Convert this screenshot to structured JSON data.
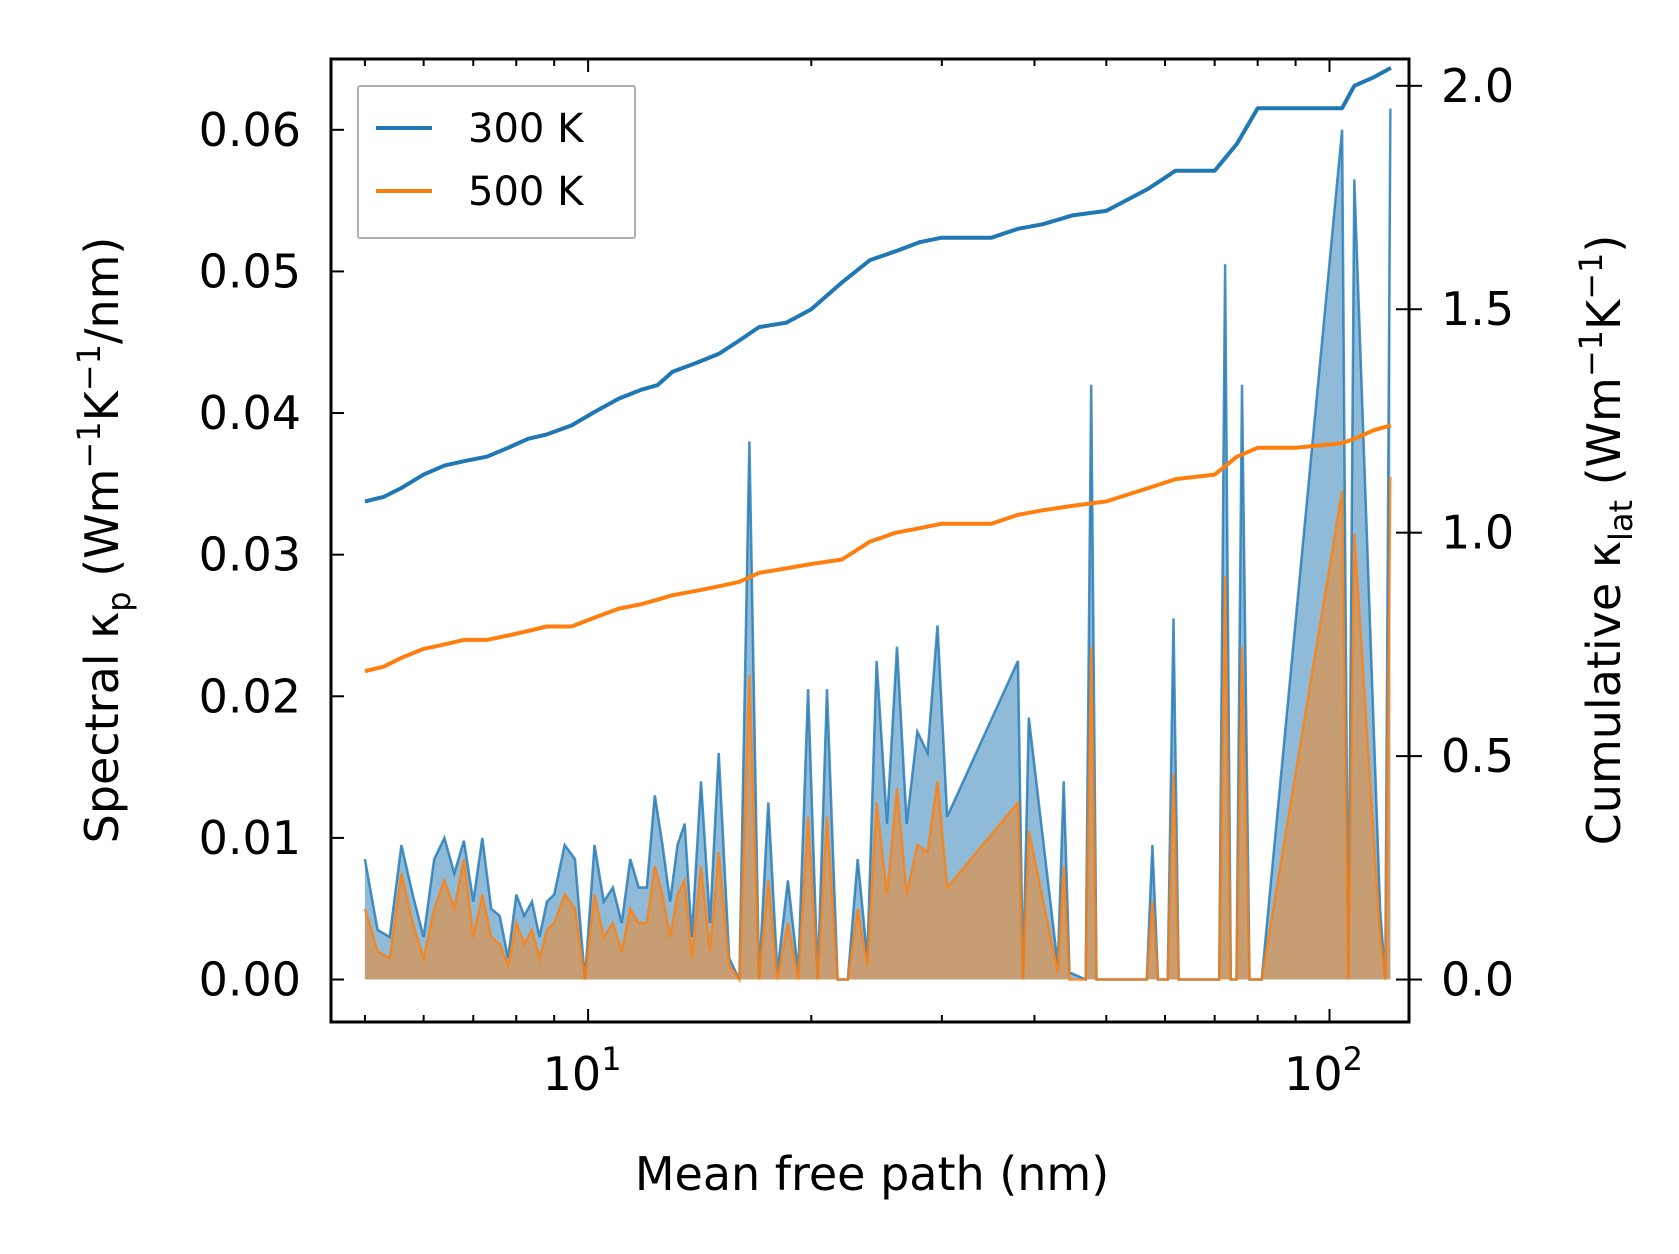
{
  "chart_data": {
    "type": "line",
    "xlabel": "Mean free path (nm)",
    "x_scale": "log",
    "xlim": [
      4.5,
      128
    ],
    "x_ticks": [
      10,
      100
    ],
    "x_tick_labels": [
      {
        "base": "10",
        "exp": "1"
      },
      {
        "base": "10",
        "exp": "2"
      }
    ],
    "ylabel_left": {
      "pre": "Spectral κ",
      "sub": "p",
      "mid": " (Wm",
      "sup1": "−1",
      "k": "K",
      "sup2": "−1",
      "post": "/nm)"
    },
    "ylim_left": [
      -0.003,
      0.065
    ],
    "yticks_left": [
      "0.00",
      "0.01",
      "0.02",
      "0.03",
      "0.04",
      "0.05",
      "0.06"
    ],
    "ylabel_right": {
      "pre": "Cumulative κ",
      "sub": "lat",
      "mid": " (Wm",
      "sup1": "−1",
      "k": "K",
      "sup2": "−1",
      "post": ")"
    },
    "ylim_right": [
      -0.095,
      2.06
    ],
    "yticks_right": [
      "0.0",
      "0.5",
      "1.0",
      "1.5",
      "2.0"
    ],
    "legend": {
      "position": "upper left",
      "entries": [
        {
          "label": "300 K",
          "color": "#1f77b4"
        },
        {
          "label": "500 K",
          "color": "#ff7f0e"
        }
      ]
    },
    "spectral": [
      {
        "name": "300 K",
        "color": "#1f77b4",
        "x": [
          5.0,
          5.2,
          5.4,
          5.6,
          5.8,
          6.0,
          6.2,
          6.4,
          6.6,
          6.8,
          7.0,
          7.2,
          7.4,
          7.6,
          7.8,
          8.0,
          8.2,
          8.4,
          8.6,
          8.8,
          9.0,
          9.3,
          9.6,
          9.9,
          10.2,
          10.5,
          10.8,
          11.1,
          11.4,
          11.7,
          12.0,
          12.3,
          12.6,
          12.9,
          13.2,
          13.5,
          13.8,
          14.2,
          14.6,
          15.0,
          15.5,
          16.0,
          16.5,
          17.0,
          17.5,
          18.0,
          18.6,
          19.2,
          19.8,
          20.4,
          21.0,
          21.7,
          22.4,
          23.1,
          23.8,
          24.5,
          25.3,
          26.1,
          26.9,
          27.8,
          28.7,
          29.6,
          30.5,
          38.0,
          38.6,
          39.3,
          43.0,
          43.8,
          44.6,
          46.9,
          47.7,
          48.5,
          56.7,
          57.7,
          58.7,
          60.5,
          61.6,
          62.6,
          71.0,
          72.3,
          73.6,
          74.9,
          76.2,
          78.0,
          81.0,
          104.0,
          106.0,
          108.0,
          117.0,
          118.9,
          120.8
        ],
        "y": [
          0.0085,
          0.0035,
          0.003,
          0.0095,
          0.006,
          0.003,
          0.0085,
          0.01,
          0.0075,
          0.0098,
          0.0055,
          0.01,
          0.005,
          0.0045,
          0.0015,
          0.006,
          0.0045,
          0.0055,
          0.003,
          0.0055,
          0.006,
          0.0095,
          0.0085,
          0.0,
          0.0095,
          0.0055,
          0.0065,
          0.004,
          0.0085,
          0.0065,
          0.0065,
          0.013,
          0.0095,
          0.0055,
          0.0095,
          0.011,
          0.003,
          0.014,
          0.004,
          0.016,
          0.0015,
          0.0,
          0.038,
          0.0,
          0.0125,
          0.0005,
          0.007,
          0.0005,
          0.0205,
          0.0,
          0.0205,
          0.0,
          0.0,
          0.0085,
          0.0015,
          0.0225,
          0.011,
          0.0235,
          0.011,
          0.0175,
          0.016,
          0.025,
          0.0115,
          0.0225,
          0.0,
          0.0185,
          0.001,
          0.014,
          0.0005,
          0.0,
          0.042,
          0.0,
          0.0,
          0.0095,
          0.0,
          0.0,
          0.0255,
          0.0,
          0.0,
          0.0505,
          0.0,
          0.0,
          0.042,
          0.0,
          0.0,
          0.06,
          0.0,
          0.0565,
          0.005,
          0.0,
          0.0615
        ]
      },
      {
        "name": "500 K",
        "color": "#ff7f0e",
        "x": [
          5.0,
          5.2,
          5.4,
          5.6,
          5.8,
          6.0,
          6.2,
          6.4,
          6.6,
          6.8,
          7.0,
          7.2,
          7.4,
          7.6,
          7.8,
          8.0,
          8.2,
          8.4,
          8.6,
          8.8,
          9.0,
          9.3,
          9.6,
          9.9,
          10.2,
          10.5,
          10.8,
          11.1,
          11.4,
          11.7,
          12.0,
          12.3,
          12.6,
          12.9,
          13.2,
          13.5,
          13.8,
          14.2,
          14.6,
          15.0,
          15.5,
          16.0,
          16.5,
          17.0,
          17.5,
          18.0,
          18.6,
          19.2,
          19.8,
          20.4,
          21.0,
          21.7,
          22.4,
          23.1,
          23.8,
          24.5,
          25.3,
          26.1,
          26.9,
          27.8,
          28.7,
          29.6,
          30.5,
          38.0,
          38.6,
          39.3,
          43.0,
          43.8,
          44.6,
          46.9,
          47.7,
          48.5,
          56.7,
          57.7,
          58.7,
          60.5,
          61.6,
          62.6,
          71.0,
          72.3,
          73.6,
          74.9,
          76.2,
          78.0,
          81.0,
          104.0,
          106.0,
          108.0,
          117.0,
          118.9,
          120.8
        ],
        "y": [
          0.005,
          0.002,
          0.0015,
          0.0075,
          0.004,
          0.0015,
          0.005,
          0.007,
          0.005,
          0.0085,
          0.003,
          0.006,
          0.003,
          0.0025,
          0.001,
          0.004,
          0.0025,
          0.0035,
          0.0015,
          0.0035,
          0.004,
          0.006,
          0.005,
          0.0,
          0.006,
          0.003,
          0.004,
          0.002,
          0.005,
          0.004,
          0.004,
          0.008,
          0.006,
          0.003,
          0.006,
          0.007,
          0.0015,
          0.008,
          0.002,
          0.009,
          0.001,
          0.0,
          0.0215,
          0.0,
          0.007,
          0.0,
          0.004,
          0.0,
          0.0115,
          0.0,
          0.0115,
          0.0,
          0.0,
          0.005,
          0.001,
          0.0125,
          0.006,
          0.0135,
          0.006,
          0.0095,
          0.009,
          0.014,
          0.0065,
          0.0125,
          0.0,
          0.0105,
          0.0005,
          0.008,
          0.0,
          0.0,
          0.0235,
          0.0,
          0.0,
          0.0055,
          0.0,
          0.0,
          0.0145,
          0.0,
          0.0,
          0.0285,
          0.0,
          0.0,
          0.0235,
          0.0,
          0.0,
          0.0345,
          0.0,
          0.0315,
          0.003,
          0.0,
          0.0355
        ]
      }
    ],
    "cumulative": [
      {
        "name": "300 K",
        "color": "#1f77b4",
        "x": [
          5.0,
          5.3,
          5.6,
          6.0,
          6.4,
          6.8,
          7.3,
          7.8,
          8.3,
          8.8,
          9.5,
          10.2,
          11.0,
          11.8,
          12.4,
          13.0,
          14.0,
          15.0,
          16.0,
          17.0,
          18.5,
          20.0,
          22.0,
          24.0,
          26.0,
          28.0,
          30.0,
          35.0,
          38.0,
          41.0,
          45.0,
          50.0,
          57.0,
          62.0,
          70.0,
          75.0,
          80.0,
          90.0,
          104.0,
          108.0,
          115.0,
          121.0
        ],
        "y": [
          1.07,
          1.08,
          1.1,
          1.13,
          1.15,
          1.16,
          1.17,
          1.19,
          1.21,
          1.22,
          1.24,
          1.27,
          1.3,
          1.32,
          1.33,
          1.36,
          1.38,
          1.4,
          1.43,
          1.46,
          1.47,
          1.5,
          1.56,
          1.61,
          1.63,
          1.65,
          1.66,
          1.66,
          1.68,
          1.69,
          1.71,
          1.72,
          1.77,
          1.81,
          1.81,
          1.87,
          1.95,
          1.95,
          1.95,
          2.0,
          2.02,
          2.04
        ]
      },
      {
        "name": "500 K",
        "color": "#ff7f0e",
        "x": [
          5.0,
          5.3,
          5.6,
          6.0,
          6.4,
          6.8,
          7.3,
          7.8,
          8.3,
          8.8,
          9.5,
          10.2,
          11.0,
          11.8,
          12.4,
          13.0,
          14.0,
          15.0,
          16.0,
          17.0,
          18.5,
          20.0,
          22.0,
          24.0,
          26.0,
          28.0,
          30.0,
          35.0,
          38.0,
          41.0,
          45.0,
          50.0,
          57.0,
          62.0,
          70.0,
          75.0,
          80.0,
          90.0,
          104.0,
          108.0,
          115.0,
          121.0
        ],
        "y": [
          0.69,
          0.7,
          0.72,
          0.74,
          0.75,
          0.76,
          0.76,
          0.77,
          0.78,
          0.79,
          0.79,
          0.81,
          0.83,
          0.84,
          0.85,
          0.86,
          0.87,
          0.88,
          0.89,
          0.91,
          0.92,
          0.93,
          0.94,
          0.98,
          1.0,
          1.01,
          1.02,
          1.02,
          1.04,
          1.05,
          1.06,
          1.07,
          1.1,
          1.12,
          1.13,
          1.17,
          1.19,
          1.19,
          1.2,
          1.21,
          1.23,
          1.24
        ]
      }
    ]
  }
}
